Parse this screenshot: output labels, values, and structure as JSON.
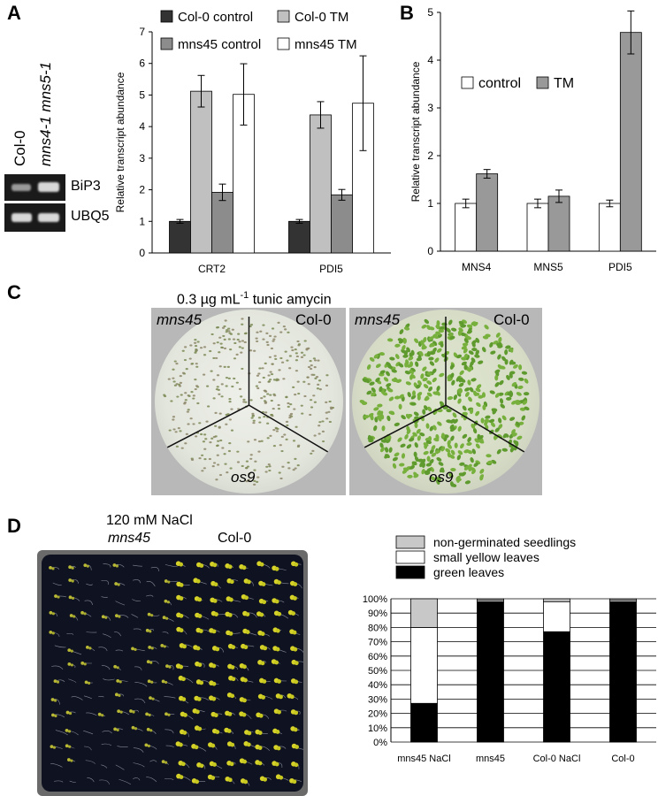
{
  "panels": {
    "a": "A",
    "b": "B",
    "c": "C",
    "d": "D"
  },
  "gel": {
    "lanes": [
      "Col-0",
      "mns4-1 mns5-1"
    ],
    "genes": [
      "BiP3",
      "UBQ5"
    ]
  },
  "panel_c": {
    "title": "0.3 µg mL",
    "title_sup": "-1",
    "title_rest": " tunic amycin",
    "plate_labels": {
      "mutant": "mns45",
      "wt": "Col-0",
      "os9": "os9"
    }
  },
  "panel_d": {
    "title": "120 mM NaCl",
    "col_mutant": "mns45",
    "col_wt": "Col-0"
  },
  "chart_data": [
    {
      "type": "bar",
      "ylabel": "Relative transcript abundance",
      "categories": [
        "CRT2",
        "PDI5"
      ],
      "ylim": [
        0,
        7
      ],
      "yticks": [
        "0",
        "1",
        "2",
        "3",
        "4",
        "5",
        "6",
        "7"
      ],
      "legend": "top",
      "series": [
        {
          "name": "Col-0 control",
          "values": [
            1.0,
            1.0
          ],
          "errors": [
            0.06,
            0.06
          ],
          "color": "#333333"
        },
        {
          "name": "Col-0 TM",
          "values": [
            5.12,
            4.37
          ],
          "errors": [
            0.5,
            0.42
          ],
          "color": "#c0c0c0"
        },
        {
          "name": "mns45 control",
          "values": [
            1.92,
            1.84
          ],
          "errors": [
            0.26,
            0.17
          ],
          "color": "#8c8c8c"
        },
        {
          "name": "mns45 TM",
          "values": [
            5.02,
            4.74
          ],
          "errors": [
            0.97,
            1.5
          ],
          "color": "#ffffff"
        }
      ]
    },
    {
      "type": "bar",
      "ylabel": "Relative transcript abundance",
      "categories": [
        "MNS4",
        "MNS5",
        "PDI5"
      ],
      "ylim": [
        0,
        5
      ],
      "yticks": [
        "0",
        "1",
        "2",
        "3",
        "4",
        "5"
      ],
      "legend": "middle-left",
      "series": [
        {
          "name": "control",
          "values": [
            1.0,
            1.0,
            1.0
          ],
          "errors": [
            0.09,
            0.09,
            0.07
          ],
          "color": "#ffffff"
        },
        {
          "name": "TM",
          "values": [
            1.62,
            1.15,
            4.58
          ],
          "errors": [
            0.09,
            0.13,
            0.45
          ],
          "color": "#999999"
        }
      ]
    },
    {
      "type": "bar",
      "stacked": true,
      "categories": [
        "mns45 NaCl",
        "mns45",
        "Col-0 NaCl",
        "Col-0"
      ],
      "ylim": [
        0,
        100
      ],
      "yticks": [
        "0%",
        "10%",
        "20%",
        "30%",
        "40%",
        "50%",
        "60%",
        "70%",
        "80%",
        "90%",
        "100%"
      ],
      "legend": "top",
      "series": [
        {
          "name": "green leaves",
          "values": [
            27,
            98,
            77,
            98
          ],
          "color": "#000000"
        },
        {
          "name": "small yellow leaves",
          "values": [
            53,
            1,
            21,
            1
          ],
          "color": "#ffffff"
        },
        {
          "name": "non-germinated seedlings",
          "values": [
            20,
            1,
            2,
            1
          ],
          "color": "#c8c8c8"
        }
      ]
    }
  ]
}
